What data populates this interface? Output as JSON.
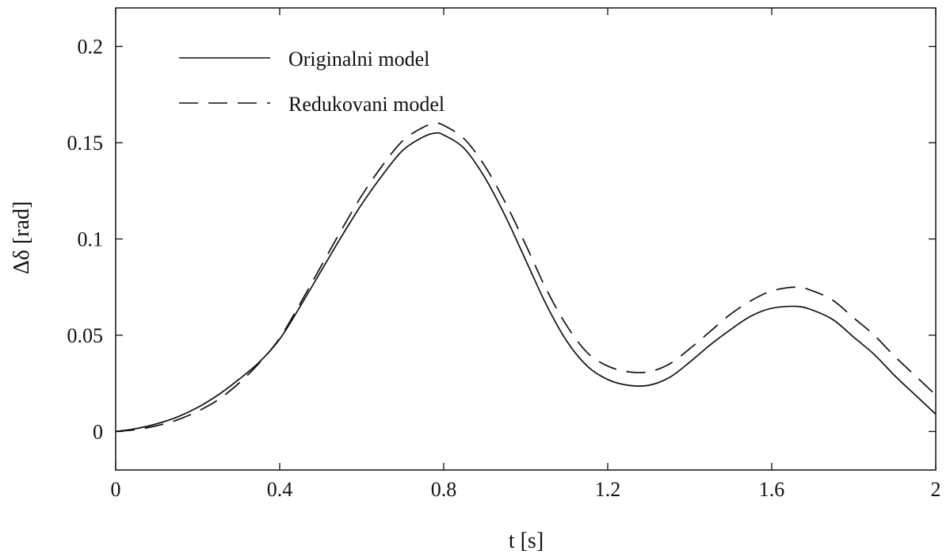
{
  "chart_data": {
    "type": "line",
    "title": "",
    "xlabel": "t [s]",
    "ylabel": "Δδ [rad]",
    "xlim": [
      0,
      2
    ],
    "ylim": [
      -0.02,
      0.22
    ],
    "xticks": [
      0,
      0.4,
      0.8,
      1.2,
      1.6,
      2
    ],
    "xtick_labels": [
      "0",
      "0.4",
      "0.8",
      "1.2",
      "1.6",
      "2"
    ],
    "yticks": [
      0,
      0.05,
      0.1,
      0.15,
      0.2
    ],
    "ytick_labels": [
      "0",
      "0.05",
      "0.1",
      "0.15",
      "0.2"
    ],
    "grid": false,
    "legend_position": "top-left",
    "series": [
      {
        "name": "Originalni model",
        "style": "solid",
        "color": "#111111",
        "x": [
          0,
          0.05,
          0.1,
          0.15,
          0.2,
          0.25,
          0.3,
          0.35,
          0.4,
          0.45,
          0.5,
          0.55,
          0.6,
          0.65,
          0.7,
          0.75,
          0.78,
          0.8,
          0.85,
          0.9,
          0.95,
          1.0,
          1.05,
          1.1,
          1.15,
          1.2,
          1.25,
          1.3,
          1.35,
          1.4,
          1.45,
          1.5,
          1.55,
          1.6,
          1.66,
          1.7,
          1.75,
          1.8,
          1.85,
          1.9,
          1.95,
          2.0
        ],
        "y": [
          0,
          0.0015,
          0.004,
          0.0075,
          0.0125,
          0.019,
          0.027,
          0.036,
          0.048,
          0.065,
          0.083,
          0.101,
          0.118,
          0.133,
          0.146,
          0.153,
          0.155,
          0.154,
          0.147,
          0.132,
          0.112,
          0.089,
          0.066,
          0.047,
          0.034,
          0.027,
          0.024,
          0.024,
          0.028,
          0.036,
          0.045,
          0.053,
          0.06,
          0.064,
          0.065,
          0.063,
          0.058,
          0.049,
          0.04,
          0.029,
          0.019,
          0.009
        ]
      },
      {
        "name": "Redukovani model",
        "style": "dashed",
        "color": "#111111",
        "x": [
          0,
          0.05,
          0.1,
          0.15,
          0.2,
          0.25,
          0.3,
          0.35,
          0.4,
          0.45,
          0.5,
          0.55,
          0.6,
          0.65,
          0.7,
          0.75,
          0.78,
          0.8,
          0.85,
          0.9,
          0.95,
          1.0,
          1.05,
          1.1,
          1.15,
          1.2,
          1.25,
          1.3,
          1.35,
          1.4,
          1.45,
          1.5,
          1.55,
          1.6,
          1.66,
          1.7,
          1.75,
          1.8,
          1.85,
          1.9,
          1.95,
          2.0
        ],
        "y": [
          0,
          0.001,
          0.003,
          0.006,
          0.0105,
          0.0165,
          0.025,
          0.0355,
          0.0485,
          0.0665,
          0.0855,
          0.1045,
          0.1225,
          0.138,
          0.151,
          0.158,
          0.16,
          0.159,
          0.152,
          0.138,
          0.119,
          0.097,
          0.074,
          0.055,
          0.041,
          0.034,
          0.031,
          0.031,
          0.035,
          0.043,
          0.052,
          0.061,
          0.068,
          0.073,
          0.075,
          0.073,
          0.068,
          0.059,
          0.05,
          0.039,
          0.029,
          0.019
        ]
      }
    ]
  }
}
